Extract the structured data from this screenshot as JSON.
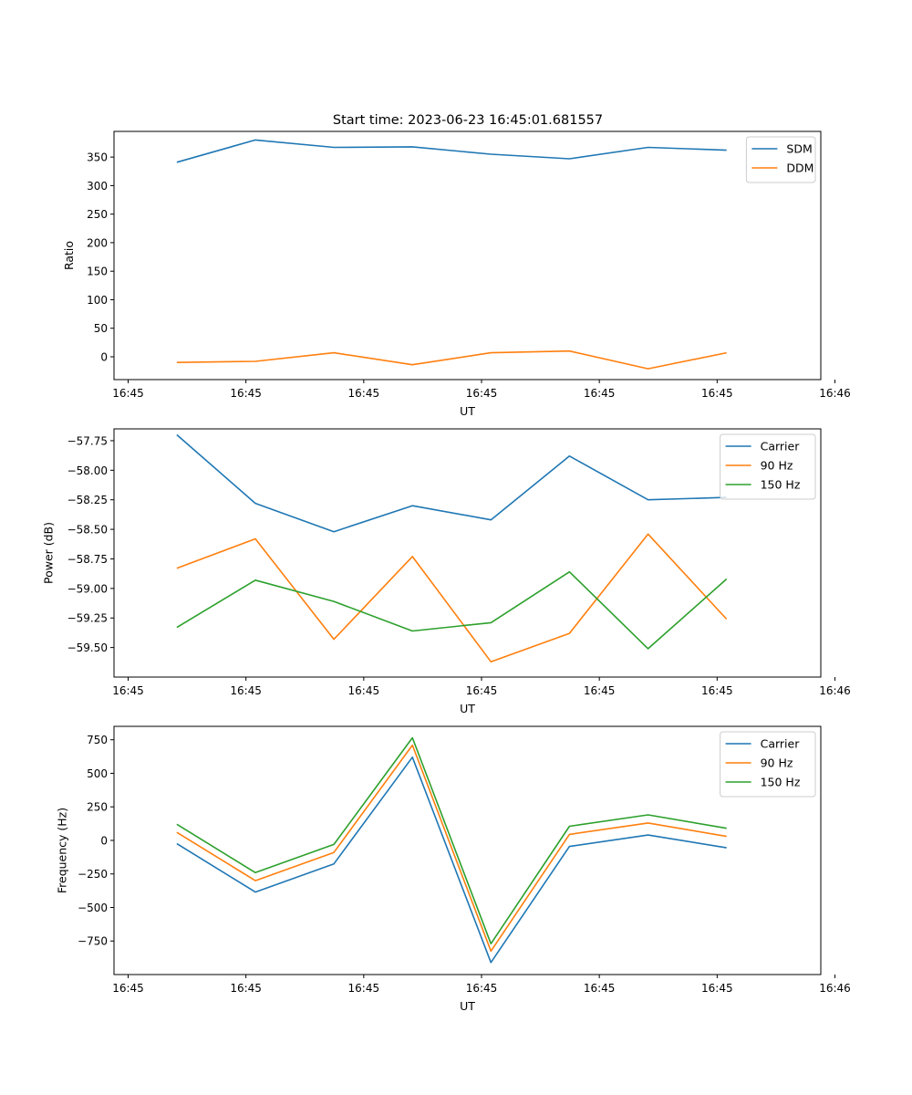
{
  "figure_title": "Start time: 2023-06-23 16:45:01.681557",
  "colors": {
    "blue": "#1f77b4",
    "orange": "#ff7f0e",
    "green": "#2ca02c"
  },
  "chart_data": [
    {
      "type": "line",
      "title": "Start time: 2023-06-23 16:45:01.681557",
      "xlabel": "UT",
      "ylabel": "Ratio",
      "x": [
        1,
        2,
        3,
        4,
        5,
        6,
        7,
        8
      ],
      "xlim": [
        0.2,
        9.2
      ],
      "x_ticks": [
        0.38,
        1.88,
        3.38,
        4.88,
        6.38,
        7.88,
        9.38
      ],
      "x_tick_labels": [
        "16:45",
        "16:45",
        "16:45",
        "16:45",
        "16:45",
        "16:45",
        "16:46"
      ],
      "ylim": [
        -40,
        395
      ],
      "y_ticks": [
        0,
        50,
        100,
        150,
        200,
        250,
        300,
        350
      ],
      "y_tick_labels": [
        "0",
        "50",
        "100",
        "150",
        "200",
        "250",
        "300",
        "350"
      ],
      "legend": "top-right",
      "series": [
        {
          "name": "SDM",
          "color": "#1f77b4",
          "values": [
            341,
            380,
            367,
            368,
            355,
            347,
            367,
            362
          ]
        },
        {
          "name": "DDM",
          "color": "#ff7f0e",
          "values": [
            -10,
            -8,
            7,
            -14,
            7,
            10,
            -21,
            7
          ]
        }
      ]
    },
    {
      "type": "line",
      "xlabel": "UT",
      "ylabel": "Power (dB)",
      "x": [
        1,
        2,
        3,
        4,
        5,
        6,
        7,
        8
      ],
      "xlim": [
        0.2,
        9.2
      ],
      "x_ticks": [
        0.38,
        1.88,
        3.38,
        4.88,
        6.38,
        7.88,
        9.38
      ],
      "x_tick_labels": [
        "16:45",
        "16:45",
        "16:45",
        "16:45",
        "16:45",
        "16:45",
        "16:46"
      ],
      "ylim": [
        -59.75,
        -57.65
      ],
      "y_ticks": [
        -57.75,
        -58.0,
        -58.25,
        -58.5,
        -58.75,
        -59.0,
        -59.25,
        -59.5
      ],
      "y_tick_labels": [
        "−57.75",
        "−58.00",
        "−58.25",
        "−58.50",
        "−58.75",
        "−59.00",
        "−59.25",
        "−59.50"
      ],
      "legend": "top-right",
      "series": [
        {
          "name": "Carrier",
          "color": "#1f77b4",
          "values": [
            -57.7,
            -58.28,
            -58.52,
            -58.3,
            -58.42,
            -57.88,
            -58.25,
            -58.23
          ]
        },
        {
          "name": "90 Hz",
          "color": "#ff7f0e",
          "values": [
            -58.83,
            -58.58,
            -59.43,
            -58.73,
            -59.62,
            -59.38,
            -58.54,
            -59.26
          ]
        },
        {
          "name": "150 Hz",
          "color": "#2ca02c",
          "values": [
            -59.33,
            -58.93,
            -59.11,
            -59.36,
            -59.29,
            -58.86,
            -59.51,
            -58.92
          ]
        }
      ]
    },
    {
      "type": "line",
      "xlabel": "UT",
      "ylabel": "Frequency (Hz)",
      "x": [
        1,
        2,
        3,
        4,
        5,
        6,
        7,
        8
      ],
      "xlim": [
        0.2,
        9.2
      ],
      "x_ticks": [
        0.38,
        1.88,
        3.38,
        4.88,
        6.38,
        7.88,
        9.38
      ],
      "x_tick_labels": [
        "16:45",
        "16:45",
        "16:45",
        "16:45",
        "16:45",
        "16:45",
        "16:46"
      ],
      "ylim": [
        -1000,
        850
      ],
      "y_ticks": [
        750,
        500,
        250,
        0,
        -250,
        -500,
        -750
      ],
      "y_tick_labels": [
        "750",
        "500",
        "250",
        "0",
        "−250",
        "−500",
        "−750"
      ],
      "legend": "top-right",
      "series": [
        {
          "name": "Carrier",
          "color": "#1f77b4",
          "values": [
            -25,
            -385,
            -175,
            620,
            -910,
            -45,
            40,
            -55
          ]
        },
        {
          "name": "90 Hz",
          "color": "#ff7f0e",
          "values": [
            60,
            -300,
            -90,
            710,
            -825,
            45,
            130,
            30
          ]
        },
        {
          "name": "150 Hz",
          "color": "#2ca02c",
          "values": [
            120,
            -240,
            -30,
            765,
            -770,
            105,
            190,
            90
          ]
        }
      ]
    }
  ]
}
